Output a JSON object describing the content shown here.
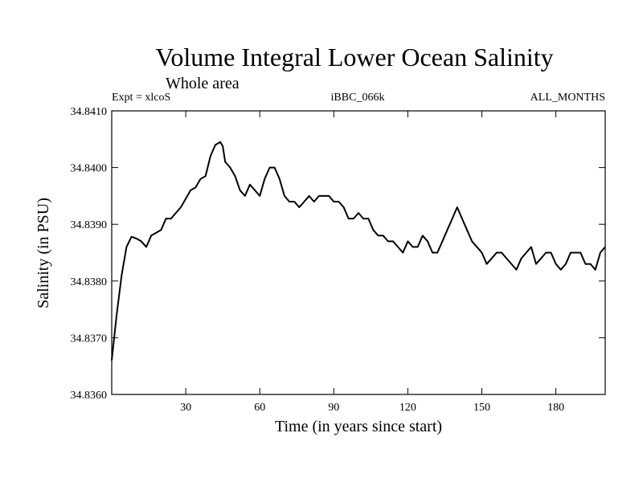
{
  "chart_data": {
    "type": "line",
    "title": "Volume Integral Lower Ocean Salinity",
    "subtitle": "Whole area",
    "header_left": "Expt = xlcoS",
    "header_center": "iBBC_066k",
    "header_right": "ALL_MONTHS",
    "xlabel": "Time (in years since start)",
    "ylabel": "Salinity (in PSU)",
    "xlim": [
      0,
      200
    ],
    "ylim": [
      34.836,
      34.841
    ],
    "x_ticks": [
      30,
      60,
      90,
      120,
      150,
      180
    ],
    "x_tick_labels": [
      "30",
      "60",
      "90",
      "120",
      "150",
      "180"
    ],
    "y_ticks": [
      34.836,
      34.837,
      34.838,
      34.839,
      34.84,
      34.841
    ],
    "y_tick_labels": [
      "34.8360",
      "34.8370",
      "34.8380",
      "34.8390",
      "34.8400",
      "34.8410"
    ],
    "grid": false,
    "series": [
      {
        "name": "Salinity",
        "x": [
          0,
          2,
          4,
          6,
          8,
          10,
          12,
          14,
          15,
          16,
          18,
          20,
          22,
          24,
          26,
          28,
          30,
          32,
          34,
          36,
          38,
          40,
          42,
          44,
          45,
          46,
          48,
          50,
          52,
          54,
          56,
          58,
          60,
          62,
          64,
          66,
          68,
          70,
          72,
          74,
          76,
          78,
          80,
          82,
          84,
          86,
          88,
          90,
          92,
          94,
          96,
          98,
          100,
          102,
          104,
          106,
          108,
          110,
          112,
          114,
          116,
          118,
          120,
          122,
          124,
          126,
          128,
          130,
          132,
          134,
          136,
          138,
          140,
          142,
          144,
          146,
          148,
          150,
          152,
          154,
          156,
          158,
          160,
          162,
          164,
          166,
          168,
          170,
          172,
          174,
          176,
          178,
          180,
          182,
          184,
          186,
          188,
          190,
          192,
          194,
          196,
          198,
          200
        ],
        "values": [
          34.8366,
          34.8374,
          34.8381,
          34.8386,
          34.83878,
          34.83875,
          34.8387,
          34.8386,
          34.8387,
          34.8388,
          34.83885,
          34.8389,
          34.8391,
          34.8391,
          34.8392,
          34.8393,
          34.83945,
          34.8396,
          34.83965,
          34.8398,
          34.83985,
          34.8402,
          34.8404,
          34.84045,
          34.84038,
          34.8401,
          34.84,
          34.83985,
          34.8396,
          34.8395,
          34.8397,
          34.8396,
          34.8395,
          34.8398,
          34.84,
          34.84,
          34.8398,
          34.8395,
          34.8394,
          34.8394,
          34.8393,
          34.8394,
          34.8395,
          34.8394,
          34.8395,
          34.8395,
          34.8395,
          34.8394,
          34.8394,
          34.8393,
          34.8391,
          34.8391,
          34.8392,
          34.8391,
          34.8391,
          34.8389,
          34.8388,
          34.8388,
          34.8387,
          34.8387,
          34.8386,
          34.8385,
          34.8387,
          34.8386,
          34.8386,
          34.8388,
          34.8387,
          34.8385,
          34.8385,
          34.8387,
          34.8389,
          34.8391,
          34.8393,
          34.8391,
          34.8389,
          34.8387,
          34.8386,
          34.8385,
          34.8383,
          34.8384,
          34.8385,
          34.8385,
          34.8384,
          34.8383,
          34.8382,
          34.8384,
          34.8385,
          34.8386,
          34.8383,
          34.8384,
          34.8385,
          34.8385,
          34.8383,
          34.8382,
          34.8383,
          34.8385,
          34.8385,
          34.8385,
          34.8383,
          34.8383,
          34.8382,
          34.8385,
          34.8386
        ]
      }
    ]
  }
}
